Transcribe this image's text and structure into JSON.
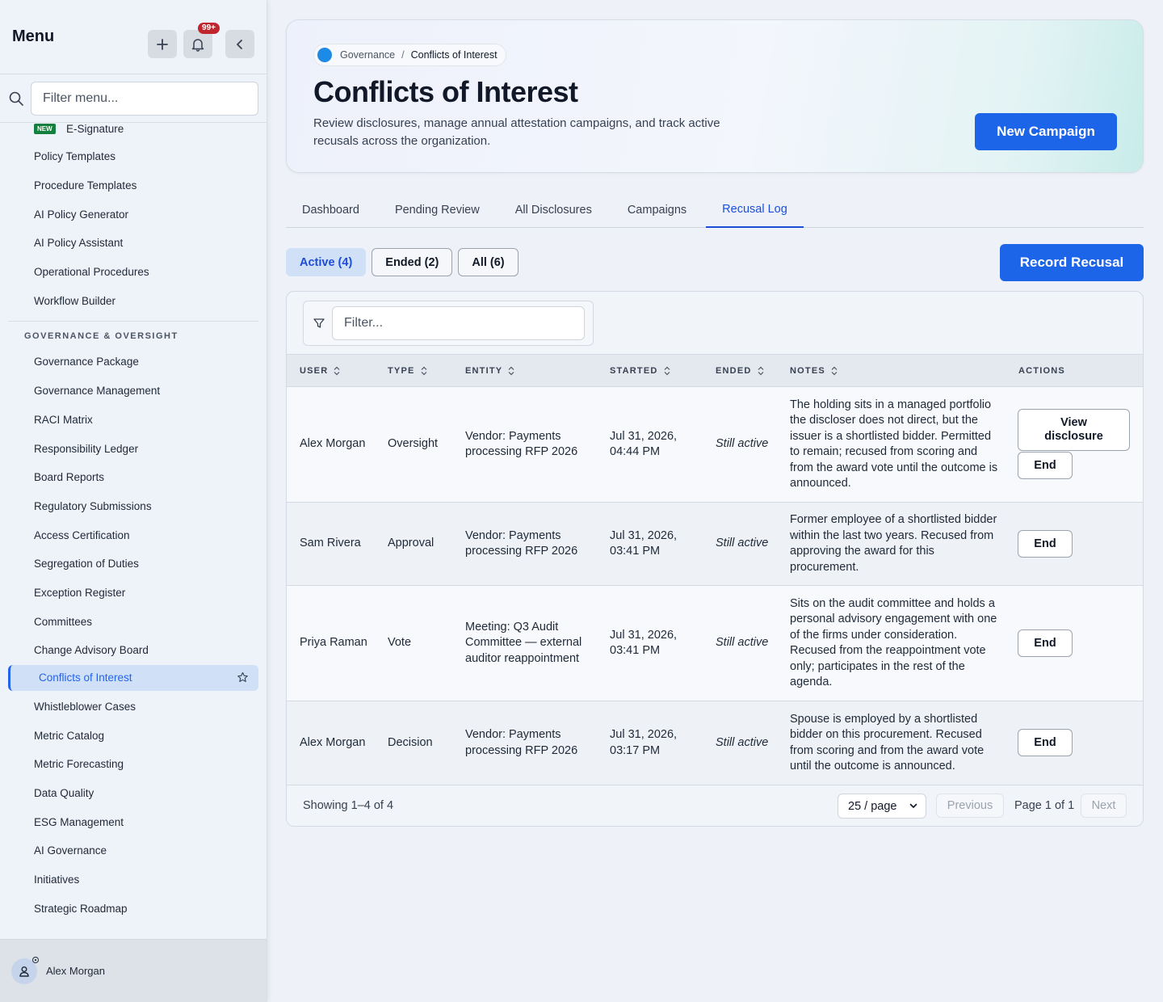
{
  "sidebar": {
    "title": "Menu",
    "notification_count": "99+",
    "filter_placeholder": "Filter menu...",
    "new_badge": "NEW",
    "esign_label": "E-Signature",
    "top_items": [
      "Policy Templates",
      "Procedure Templates",
      "AI Policy Generator",
      "AI Policy Assistant",
      "Operational Procedures",
      "Workflow Builder"
    ],
    "section_label": "GOVERNANCE & OVERSIGHT",
    "gov_items_before": [
      "Governance Package",
      "Governance Management",
      "RACI Matrix",
      "Responsibility Ledger",
      "Board Reports",
      "Regulatory Submissions",
      "Access Certification",
      "Segregation of Duties",
      "Exception Register",
      "Committees",
      "Change Advisory Board"
    ],
    "active_item": "Conflicts of Interest",
    "gov_items_after": [
      "Whistleblower Cases",
      "Metric Catalog",
      "Metric Forecasting",
      "Data Quality",
      "ESG Management",
      "AI Governance",
      "Initiatives",
      "Strategic Roadmap"
    ],
    "user_name": "Alex Morgan"
  },
  "hero": {
    "breadcrumb_parent": "Governance",
    "breadcrumb_sep": "/",
    "breadcrumb_current": "Conflicts of Interest",
    "title": "Conflicts of Interest",
    "description": "Review disclosures, manage annual attestation campaigns, and track active recusals across the organization.",
    "new_campaign": "New Campaign"
  },
  "tabs": [
    "Dashboard",
    "Pending Review",
    "All Disclosures",
    "Campaigns",
    "Recusal Log"
  ],
  "active_tab": "Recusal Log",
  "filters": {
    "active": "Active (4)",
    "ended": "Ended (2)",
    "all": "All (6)"
  },
  "record_recusal": "Record Recusal",
  "table": {
    "filter_placeholder": "Filter...",
    "headers": {
      "user": "USER",
      "type": "TYPE",
      "entity": "ENTITY",
      "started": "STARTED",
      "ended": "ENDED",
      "notes": "NOTES",
      "actions": "ACTIONS"
    },
    "rows": [
      {
        "user": "Alex Morgan",
        "type": "Oversight",
        "entity": "Vendor: Payments processing RFP 2026",
        "started": "Jul 31, 2026, 04:44 PM",
        "ended": "Still active",
        "notes": "The holding sits in a managed portfolio the discloser does not direct, but the issuer is a shortlisted bidder. Permitted to remain; recused from scoring and from the award vote until the outcome is announced.",
        "view_label": "View disclosure",
        "end_label": "End"
      },
      {
        "user": "Sam Rivera",
        "type": "Approval",
        "entity": "Vendor: Payments processing RFP 2026",
        "started": "Jul 31, 2026, 03:41 PM",
        "ended": "Still active",
        "notes": "Former employee of a shortlisted bidder within the last two years. Recused from approving the award for this procurement.",
        "end_label": "End"
      },
      {
        "user": "Priya Raman",
        "type": "Vote",
        "entity": "Meeting: Q3 Audit Committee — external auditor reappointment",
        "started": "Jul 31, 2026, 03:41 PM",
        "ended": "Still active",
        "notes": "Sits on the audit committee and holds a personal advisory engagement with one of the firms under consideration. Recused from the reappointment vote only; participates in the rest of the agenda.",
        "end_label": "End"
      },
      {
        "user": "Alex Morgan",
        "type": "Decision",
        "entity": "Vendor: Payments processing RFP 2026",
        "started": "Jul 31, 2026, 03:17 PM",
        "ended": "Still active",
        "notes": "Spouse is employed by a shortlisted bidder on this procurement. Recused from scoring and from the award vote until the outcome is announced.",
        "end_label": "End"
      }
    ],
    "showing": "Showing 1–4 of 4",
    "per_page": "25 / page",
    "previous": "Previous",
    "page_info": "Page 1 of 1",
    "next": "Next"
  },
  "colors": {
    "primary": "#1c64e8",
    "active_chip_bg": "#cfe0f7",
    "badge_red": "#c0262d",
    "new_green": "#15803d"
  }
}
